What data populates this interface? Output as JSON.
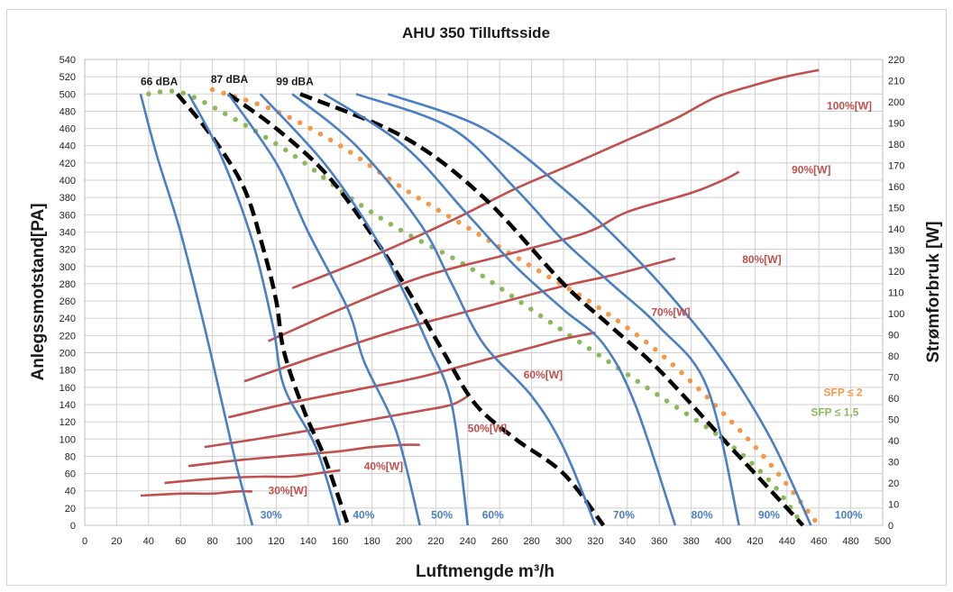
{
  "chart_data": {
    "type": "line",
    "title": "AHU 350 Tilluftsside",
    "xlabel": "Luftmengde m³/h",
    "ylabel": "Anlegssmotstand[PA]",
    "y2label": "Strømforbruk [W]",
    "xlim": [
      0,
      500
    ],
    "ylim": [
      0,
      540
    ],
    "y2lim": [
      0,
      220
    ],
    "x_ticks": [
      "0",
      "20",
      "40",
      "60",
      "80",
      "100",
      "120",
      "140",
      "160",
      "180",
      "200",
      "220",
      "240",
      "260",
      "280",
      "300",
      "320",
      "340",
      "360",
      "380",
      "400",
      "420",
      "440",
      "460",
      "480",
      "500"
    ],
    "y_ticks": [
      "0",
      "20",
      "40",
      "60",
      "80",
      "100",
      "120",
      "140",
      "160",
      "180",
      "200",
      "220",
      "240",
      "260",
      "280",
      "300",
      "320",
      "340",
      "360",
      "380",
      "400",
      "420",
      "440",
      "460",
      "480",
      "500",
      "520",
      "540"
    ],
    "y2_ticks": [
      "0",
      "10",
      "20",
      "30",
      "40",
      "50",
      "60",
      "70",
      "80",
      "90",
      "100",
      "110",
      "120",
      "130",
      "140",
      "150",
      "160",
      "170",
      "180",
      "190",
      "200",
      "210",
      "220"
    ],
    "grid": true,
    "colors": {
      "fan_curve": "#4a7fc1",
      "power_curve": "#c0504d",
      "sound_curve": "#000000",
      "sfp2": "#f79646",
      "sfp15": "#8db85a"
    },
    "fan_curves": [
      {
        "label": "30%",
        "label_pos": [
          110,
          6
        ],
        "points": [
          [
            35,
            500
          ],
          [
            45,
            430
          ],
          [
            60,
            340
          ],
          [
            75,
            230
          ],
          [
            85,
            150
          ],
          [
            95,
            70
          ],
          [
            105,
            0
          ]
        ]
      },
      {
        "label": "40%",
        "label_pos": [
          168,
          6
        ],
        "points": [
          [
            65,
            500
          ],
          [
            85,
            430
          ],
          [
            105,
            330
          ],
          [
            118,
            230
          ],
          [
            125,
            160
          ],
          [
            145,
            90
          ],
          [
            160,
            0
          ]
        ]
      },
      {
        "label": "50%",
        "label_pos": [
          217,
          6
        ],
        "points": [
          [
            90,
            500
          ],
          [
            120,
            420
          ],
          [
            140,
            340
          ],
          [
            165,
            250
          ],
          [
            175,
            190
          ],
          [
            195,
            110
          ],
          [
            210,
            0
          ]
        ]
      },
      {
        "label": "60%",
        "label_pos": [
          249,
          6
        ],
        "points": [
          [
            110,
            500
          ],
          [
            150,
            420
          ],
          [
            180,
            340
          ],
          [
            200,
            270
          ],
          [
            215,
            210
          ],
          [
            230,
            140
          ],
          [
            240,
            0
          ]
        ]
      },
      {
        "label": "70%",
        "label_pos": [
          331,
          6
        ],
        "points": [
          [
            130,
            500
          ],
          [
            170,
            440
          ],
          [
            210,
            350
          ],
          [
            230,
            280
          ],
          [
            250,
            210
          ],
          [
            280,
            150
          ],
          [
            300,
            90
          ],
          [
            320,
            0
          ]
        ]
      },
      {
        "label": "80%",
        "label_pos": [
          380,
          6
        ],
        "points": [
          [
            150,
            500
          ],
          [
            200,
            440
          ],
          [
            240,
            360
          ],
          [
            270,
            300
          ],
          [
            300,
            250
          ],
          [
            325,
            210
          ],
          [
            345,
            140
          ],
          [
            370,
            0
          ]
        ]
      },
      {
        "label": "90%",
        "label_pos": [
          422,
          6
        ],
        "points": [
          [
            170,
            500
          ],
          [
            230,
            460
          ],
          [
            270,
            390
          ],
          [
            300,
            330
          ],
          [
            330,
            280
          ],
          [
            360,
            230
          ],
          [
            390,
            160
          ],
          [
            410,
            0
          ]
        ]
      },
      {
        "label": "100%",
        "label_pos": [
          470,
          6
        ],
        "points": [
          [
            190,
            500
          ],
          [
            250,
            460
          ],
          [
            300,
            390
          ],
          [
            340,
            320
          ],
          [
            370,
            260
          ],
          [
            400,
            190
          ],
          [
            430,
            100
          ],
          [
            455,
            0
          ]
        ]
      }
    ],
    "power_curves": [
      {
        "label": "30%[W]",
        "label_pos": [
          115,
          36
        ],
        "points": [
          [
            35,
            14
          ],
          [
            60,
            15
          ],
          [
            80,
            15
          ],
          [
            95,
            16
          ],
          [
            105,
            16
          ]
        ]
      },
      {
        "label": "40%[W]",
        "label_pos": [
          175,
          64
        ],
        "points": [
          [
            50,
            20
          ],
          [
            80,
            22
          ],
          [
            110,
            23
          ],
          [
            130,
            23
          ],
          [
            150,
            25
          ],
          [
            160,
            26
          ]
        ]
      },
      {
        "label": "50%[W]",
        "label_pos": [
          240,
          108
        ],
        "points": [
          [
            65,
            28
          ],
          [
            100,
            31
          ],
          [
            130,
            33
          ],
          [
            160,
            35
          ],
          [
            180,
            37
          ],
          [
            200,
            38
          ],
          [
            210,
            38
          ]
        ]
      },
      {
        "label": "60%[W]",
        "label_pos": [
          275,
          170
        ],
        "points": [
          [
            75,
            37
          ],
          [
            110,
            41
          ],
          [
            150,
            46
          ],
          [
            180,
            50
          ],
          [
            210,
            54
          ],
          [
            230,
            57
          ],
          [
            240,
            61
          ]
        ]
      },
      {
        "label": "70%[W]",
        "label_pos": [
          355,
          243
        ],
        "points": [
          [
            90,
            51
          ],
          [
            130,
            58
          ],
          [
            170,
            64
          ],
          [
            210,
            70
          ],
          [
            250,
            78
          ],
          [
            280,
            84
          ],
          [
            300,
            88
          ],
          [
            320,
            91
          ]
        ]
      },
      {
        "label": "80%[W]",
        "label_pos": [
          412,
          304
        ],
        "points": [
          [
            100,
            68
          ],
          [
            150,
            81
          ],
          [
            200,
            93
          ],
          [
            250,
            103
          ],
          [
            300,
            113
          ],
          [
            330,
            118
          ],
          [
            355,
            123
          ],
          [
            370,
            126
          ]
        ]
      },
      {
        "label": "90%[W]",
        "label_pos": [
          443,
          408
        ],
        "points": [
          [
            115,
            87
          ],
          [
            160,
            102
          ],
          [
            210,
            117
          ],
          [
            260,
            127
          ],
          [
            300,
            135
          ],
          [
            320,
            140
          ],
          [
            340,
            148
          ],
          [
            380,
            157
          ],
          [
            400,
            163
          ],
          [
            410,
            167
          ]
        ]
      },
      {
        "label": "100%[W]",
        "label_pos": [
          465,
          482
        ],
        "points": [
          [
            130,
            112
          ],
          [
            180,
            127
          ],
          [
            230,
            144
          ],
          [
            270,
            159
          ],
          [
            310,
            172
          ],
          [
            340,
            182
          ],
          [
            370,
            192
          ],
          [
            395,
            202
          ],
          [
            420,
            208
          ],
          [
            440,
            212
          ],
          [
            460,
            215
          ]
        ]
      }
    ],
    "sound_curves": [
      {
        "label": "66 dBA",
        "label_pos": [
          35,
          510
        ],
        "points": [
          [
            58,
            500
          ],
          [
            80,
            450
          ],
          [
            100,
            390
          ],
          [
            112,
            320
          ],
          [
            120,
            260
          ],
          [
            125,
            200
          ],
          [
            138,
            130
          ],
          [
            150,
            80
          ],
          [
            165,
            0
          ]
        ]
      },
      {
        "label": "87 dBA",
        "label_pos": [
          79,
          513
        ],
        "points": [
          [
            90,
            500
          ],
          [
            120,
            460
          ],
          [
            150,
            410
          ],
          [
            175,
            350
          ],
          [
            200,
            280
          ],
          [
            225,
            200
          ],
          [
            245,
            140
          ],
          [
            270,
            100
          ],
          [
            300,
            60
          ],
          [
            325,
            0
          ]
        ]
      },
      {
        "label": "99 dBA",
        "label_pos": [
          120,
          510
        ],
        "points": [
          [
            135,
            500
          ],
          [
            200,
            450
          ],
          [
            250,
            380
          ],
          [
            300,
            280
          ],
          [
            330,
            230
          ],
          [
            360,
            180
          ],
          [
            400,
            100
          ],
          [
            430,
            40
          ],
          [
            450,
            0
          ]
        ]
      }
    ],
    "sfp_curves": [
      {
        "label": "SFP ≤ 2",
        "label_pos": [
          463,
          150
        ],
        "points": [
          [
            80,
            505
          ],
          [
            120,
            480
          ],
          [
            160,
            440
          ],
          [
            200,
            390
          ],
          [
            240,
            345
          ],
          [
            280,
            300
          ],
          [
            320,
            255
          ],
          [
            360,
            200
          ],
          [
            400,
            130
          ],
          [
            430,
            70
          ],
          [
            460,
            0
          ]
        ]
      },
      {
        "label": "SFP ≤ 1,5",
        "label_pos": [
          455,
          127
        ],
        "points": [
          [
            40,
            500
          ],
          [
            60,
            502
          ],
          [
            90,
            475
          ],
          [
            130,
            430
          ],
          [
            170,
            375
          ],
          [
            200,
            340
          ],
          [
            240,
            300
          ],
          [
            280,
            250
          ],
          [
            320,
            200
          ],
          [
            360,
            150
          ],
          [
            400,
            100
          ],
          [
            430,
            50
          ],
          [
            450,
            0
          ]
        ]
      }
    ]
  }
}
